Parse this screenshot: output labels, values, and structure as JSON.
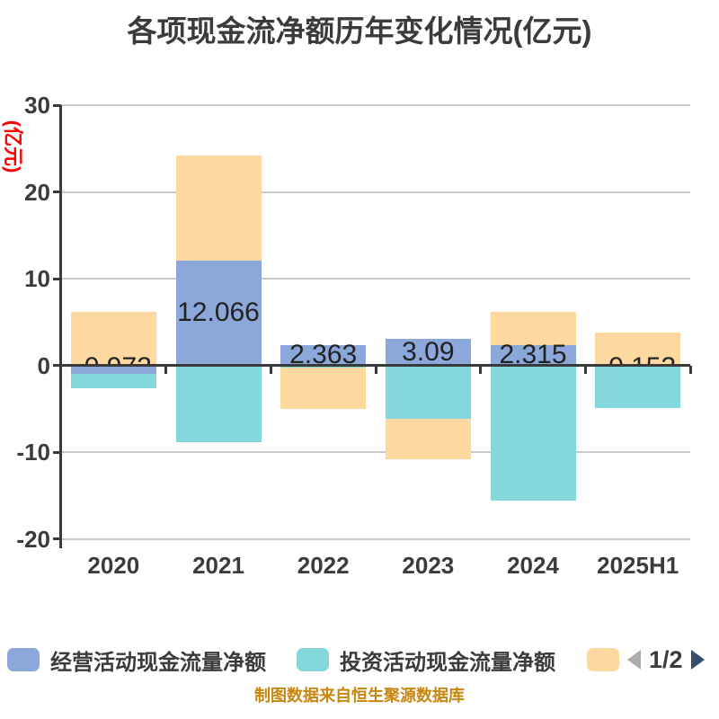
{
  "title": "各项现金流净额历年变化情况(亿元)",
  "y_axis_unit": "(亿元)",
  "chart_data": {
    "type": "bar",
    "stacked": true,
    "title": "各项现金流净额历年变化情况(亿元)",
    "categories": [
      "2020",
      "2021",
      "2022",
      "2023",
      "2024",
      "2025H1"
    ],
    "series": [
      {
        "name": "经营活动现金流量净额",
        "color": "#8CA8DA",
        "values": [
          -0.972,
          12.066,
          2.363,
          3.09,
          2.315,
          -0.153
        ]
      },
      {
        "name": "投资活动现金流量净额",
        "color": "#84D8DC",
        "values": [
          -1.7,
          -8.9,
          -0.25,
          -6.2,
          -15.6,
          -4.82
        ]
      },
      {
        "name": "",
        "color": "#FDD9A0",
        "values": [
          6.2,
          12.1,
          -4.75,
          -4.6,
          3.9,
          3.75
        ]
      }
    ],
    "value_labels": [
      {
        "text": "-0.972",
        "clipped": true
      },
      {
        "text": "12.066",
        "clipped": false
      },
      {
        "text": "2.363",
        "clipped": false
      },
      {
        "text": "3.09",
        "clipped": false
      },
      {
        "text": "2.315",
        "clipped": false
      },
      {
        "text": "-0.153",
        "clipped": true
      }
    ],
    "y_ticks": [
      30,
      20,
      10,
      0,
      -10,
      -20
    ],
    "ylim": [
      -20,
      30
    ],
    "grid": true,
    "legend_position": "bottom",
    "ylabel": "(亿元)"
  },
  "legend": {
    "items": [
      {
        "label": "经营活动现金流量净额",
        "color": "#8CA8DA"
      },
      {
        "label": "投资活动现金流量净额",
        "color": "#84D8DC"
      },
      {
        "label": "",
        "color": "#FDD9A0"
      }
    ]
  },
  "pagination": {
    "label": "1/2"
  },
  "source_note": "制图数据来自恒生聚源数据库",
  "colors": {
    "axis": "#3A3A3A",
    "gridline": "#CBCBCB",
    "title": "#3B3B3B",
    "y_unit": "#FF0000",
    "value_label": "#222222",
    "source_note": "#C8860F",
    "pager_prev": "#ACACAC",
    "pager_next": "#34506E"
  }
}
